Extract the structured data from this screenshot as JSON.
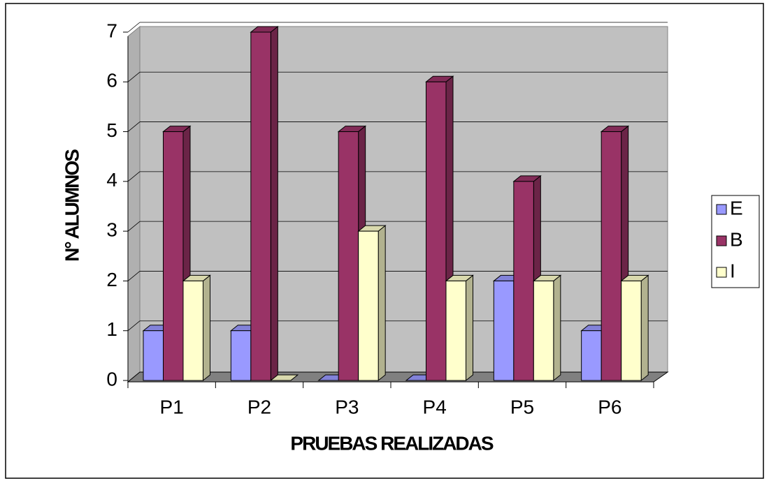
{
  "chart_data": {
    "type": "bar3d",
    "x_label": "PRUEBAS REALIZADAS",
    "y_label": "N° ALUMNOS",
    "categories": [
      "P1",
      "P2",
      "P3",
      "P4",
      "P5",
      "P6"
    ],
    "series": [
      {
        "name": "E",
        "color": "#9999ff",
        "values": [
          1,
          1,
          0,
          0,
          2,
          1
        ]
      },
      {
        "name": "B",
        "color": "#993366",
        "values": [
          5,
          7,
          5,
          6,
          4,
          5
        ]
      },
      {
        "name": "I",
        "color": "#ffffcc",
        "values": [
          2,
          0,
          3,
          2,
          2,
          2
        ]
      }
    ],
    "ylim": [
      0,
      7
    ],
    "yticks": [
      0,
      1,
      2,
      3,
      4,
      5,
      6,
      7
    ],
    "grid": true,
    "legend": "right"
  }
}
